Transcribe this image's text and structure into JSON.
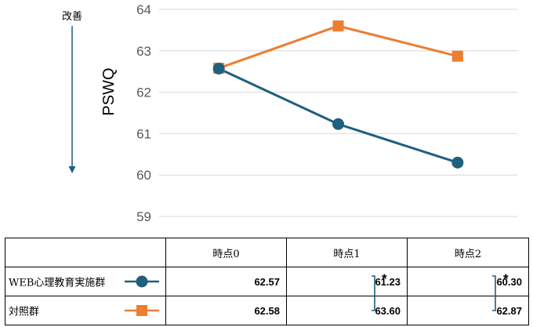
{
  "chart_data": {
    "type": "line",
    "categories": [
      "時点0",
      "時点1",
      "時点2"
    ],
    "series": [
      {
        "name": "WEB心理教育実施群",
        "values": [
          62.57,
          61.23,
          60.3
        ],
        "color": "#1F5F7F",
        "marker": "circle"
      },
      {
        "name": "対照群",
        "values": [
          62.58,
          63.6,
          62.87
        ],
        "color": "#ED7D31",
        "marker": "square"
      }
    ],
    "ylabel": "PSWQ",
    "ylim": [
      59,
      64
    ],
    "yticks": [
      "59",
      "60",
      "61",
      "62",
      "63",
      "64"
    ],
    "grid": true,
    "improvement_label": "改善",
    "arrow_color": "#1F5F7F",
    "significance": [
      {
        "between": "時点1",
        "mark": "*"
      },
      {
        "between": "時点2",
        "mark": "*"
      }
    ]
  },
  "table": {
    "headers": [
      "時点0",
      "時点1",
      "時点2"
    ],
    "rows": [
      {
        "label": "WEB心理教育実施群",
        "values": [
          "62.57",
          "61.23",
          "60.30"
        ]
      },
      {
        "label": "対照群",
        "values": [
          "62.58",
          "63.60",
          "62.87"
        ]
      }
    ],
    "sig_mark_1": "*",
    "sig_mark_2": "*"
  }
}
